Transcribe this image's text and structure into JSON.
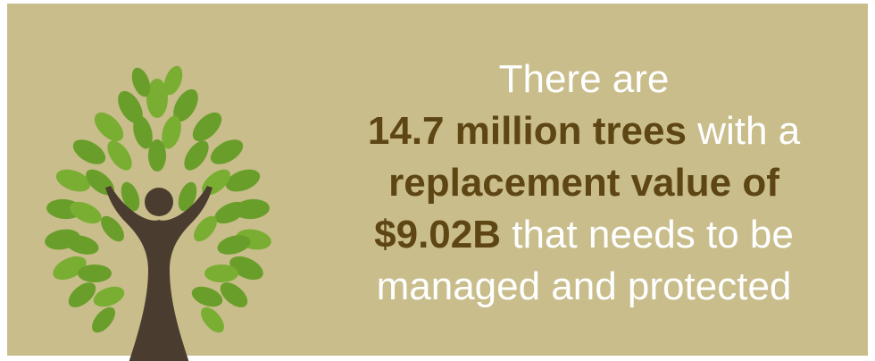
{
  "infographic": {
    "icon": "tree-person-icon",
    "colors": {
      "background": "#c8bd8b",
      "trunk": "#4a3d2f",
      "leaf": "#6a9e2a",
      "highlight_text": "#5e4514",
      "plain_text": "#ffffff"
    },
    "lines": [
      {
        "parts": [
          {
            "text": "There are",
            "strong": false
          }
        ]
      },
      {
        "parts": [
          {
            "text": "14.7 million trees",
            "strong": true
          },
          {
            "text": " with a",
            "strong": false
          }
        ]
      },
      {
        "parts": [
          {
            "text": "replacement value of",
            "strong": true
          }
        ]
      },
      {
        "parts": [
          {
            "text": "$9.02B",
            "strong": true
          },
          {
            "text": " that needs to be",
            "strong": false
          }
        ]
      },
      {
        "parts": [
          {
            "text": "managed and protected",
            "strong": false
          }
        ]
      }
    ]
  }
}
